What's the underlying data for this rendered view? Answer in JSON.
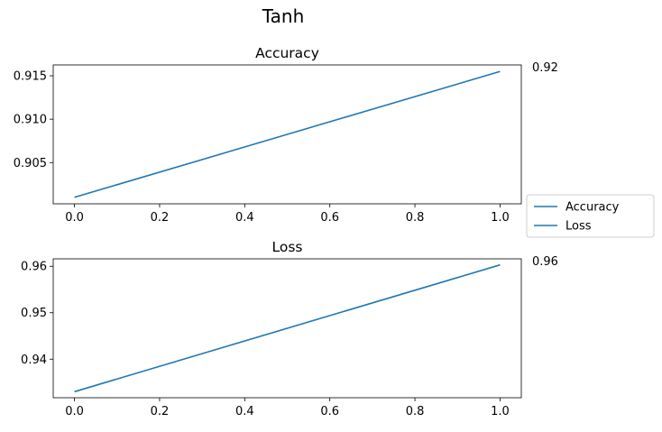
{
  "chart_data": {
    "suptitle": "Tanh",
    "legend": {
      "placement": "right",
      "entries": [
        "Accuracy",
        "Loss"
      ],
      "color": "#1f77b4"
    },
    "subplots": [
      {
        "type": "line",
        "title": "Accuracy",
        "x": [
          0.0,
          1.0
        ],
        "series": [
          {
            "name": "Accuracy",
            "values": [
              0.901,
              0.9155
            ],
            "color": "#1f77b4"
          }
        ],
        "end_label": "0.92",
        "xlim": [
          -0.05,
          1.05
        ],
        "ylim": [
          0.90025,
          0.91625
        ],
        "xticks": [
          0.0,
          0.2,
          0.4,
          0.6,
          0.8,
          1.0
        ],
        "xtick_labels": [
          "0.0",
          "0.2",
          "0.4",
          "0.6",
          "0.8",
          "1.0"
        ],
        "yticks": [
          0.905,
          0.91,
          0.915
        ],
        "ytick_labels": [
          "0.905",
          "0.910",
          "0.915"
        ],
        "grid": false
      },
      {
        "type": "line",
        "title": "Loss",
        "x": [
          0.0,
          1.0
        ],
        "series": [
          {
            "name": "Loss",
            "values": [
              0.933,
              0.9603
            ],
            "color": "#1f77b4"
          }
        ],
        "end_label": "0.96",
        "xlim": [
          -0.05,
          1.05
        ],
        "ylim": [
          0.9317,
          0.9616
        ],
        "xticks": [
          0.0,
          0.2,
          0.4,
          0.6,
          0.8,
          1.0
        ],
        "xtick_labels": [
          "0.0",
          "0.2",
          "0.4",
          "0.6",
          "0.8",
          "1.0"
        ],
        "yticks": [
          0.94,
          0.95,
          0.96
        ],
        "ytick_labels": [
          "0.94",
          "0.95",
          "0.96"
        ],
        "grid": false
      }
    ]
  }
}
